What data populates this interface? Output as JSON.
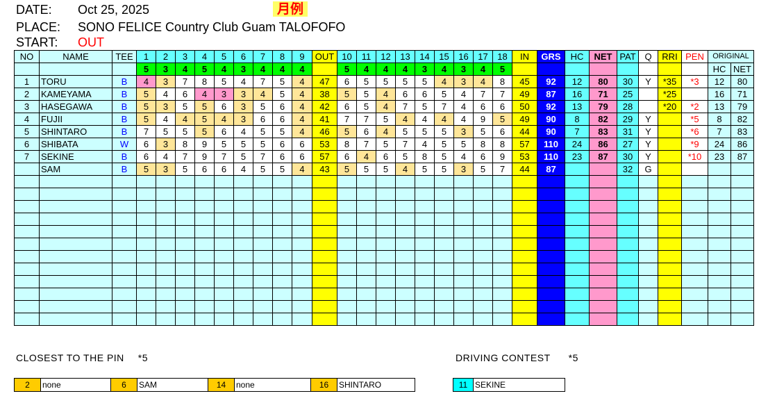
{
  "header": {
    "date_label": "DATE:",
    "date": "Oct 25, 2025",
    "place_label": "PLACE:",
    "place": "SONO FELICE Country Club Guam TALOFOFO",
    "start_label": "START:",
    "start": "OUT",
    "badge": "月例"
  },
  "columns": {
    "no": "NO",
    "name": "NAME",
    "tee": "TEE",
    "out": "OUT",
    "in": "IN",
    "grs": "GRS",
    "hc": "HC",
    "net": "NET",
    "pat": "PAT",
    "q": "Q",
    "rri": "RRI",
    "pen": "PEN",
    "original": "ORIGINAL",
    "orig_hc": "HC",
    "orig_net": "NET"
  },
  "holes": [
    "1",
    "2",
    "3",
    "4",
    "5",
    "6",
    "7",
    "8",
    "9",
    "10",
    "11",
    "12",
    "13",
    "14",
    "15",
    "16",
    "17",
    "18"
  ],
  "pars": [
    5,
    3,
    4,
    5,
    4,
    3,
    4,
    4,
    4,
    5,
    4,
    4,
    4,
    3,
    4,
    3,
    4,
    5
  ],
  "colors": {
    "par_highlight": "#ffe699",
    "birdie_highlight": "#ff99cc",
    "grs": "#0000ff",
    "out_in": "#ffff00"
  },
  "players": [
    {
      "no": "1",
      "name": "TORU",
      "tee": "B",
      "scores": [
        4,
        3,
        7,
        8,
        5,
        4,
        7,
        5,
        4,
        6,
        5,
        5,
        5,
        5,
        4,
        3,
        4,
        8
      ],
      "out": "47",
      "in": "45",
      "grs": "92",
      "hc": "12",
      "net": "80",
      "pat": "30",
      "q": "Y",
      "rri": "*35",
      "pen": "*3",
      "orig_hc": "12",
      "orig_net": "80"
    },
    {
      "no": "2",
      "name": "KAMEYAMA",
      "tee": "B",
      "scores": [
        5,
        4,
        6,
        4,
        3,
        3,
        4,
        5,
        4,
        5,
        5,
        4,
        6,
        6,
        5,
        4,
        7,
        7
      ],
      "out": "38",
      "in": "49",
      "grs": "87",
      "hc": "16",
      "net": "71",
      "pat": "25",
      "q": "",
      "rri": "*25",
      "pen": "",
      "orig_hc": "16",
      "orig_net": "71"
    },
    {
      "no": "3",
      "name": "HASEGAWA",
      "tee": "B",
      "scores": [
        5,
        3,
        5,
        5,
        6,
        3,
        5,
        6,
        4,
        6,
        5,
        4,
        7,
        5,
        7,
        4,
        6,
        6
      ],
      "out": "42",
      "in": "50",
      "grs": "92",
      "hc": "13",
      "net": "79",
      "pat": "28",
      "q": "",
      "rri": "*20",
      "pen": "*2",
      "orig_hc": "13",
      "orig_net": "79"
    },
    {
      "no": "4",
      "name": "FUJII",
      "tee": "B",
      "scores": [
        5,
        4,
        4,
        5,
        4,
        3,
        6,
        6,
        4,
        7,
        7,
        5,
        4,
        4,
        4,
        4,
        9,
        5
      ],
      "out": "41",
      "in": "49",
      "grs": "90",
      "hc": "8",
      "net": "82",
      "pat": "29",
      "q": "Y",
      "rri": "",
      "pen": "*5",
      "orig_hc": "8",
      "orig_net": "82"
    },
    {
      "no": "5",
      "name": "SHINTARO",
      "tee": "B",
      "scores": [
        7,
        5,
        5,
        5,
        6,
        4,
        5,
        5,
        4,
        5,
        6,
        4,
        5,
        5,
        5,
        3,
        5,
        6
      ],
      "out": "46",
      "in": "44",
      "grs": "90",
      "hc": "7",
      "net": "83",
      "pat": "31",
      "q": "Y",
      "rri": "",
      "pen": "*6",
      "orig_hc": "7",
      "orig_net": "83"
    },
    {
      "no": "6",
      "name": "SHIBATA",
      "tee": "W",
      "scores": [
        6,
        3,
        8,
        9,
        5,
        5,
        5,
        6,
        6,
        8,
        7,
        5,
        7,
        4,
        5,
        5,
        8,
        8
      ],
      "out": "53",
      "in": "57",
      "grs": "110",
      "hc": "24",
      "net": "86",
      "pat": "27",
      "q": "Y",
      "rri": "",
      "pen": "*9",
      "orig_hc": "24",
      "orig_net": "86"
    },
    {
      "no": "7",
      "name": "SEKINE",
      "tee": "B",
      "scores": [
        6,
        4,
        7,
        9,
        7,
        5,
        7,
        6,
        6,
        6,
        4,
        6,
        5,
        8,
        5,
        4,
        6,
        9
      ],
      "out": "57",
      "in": "53",
      "grs": "110",
      "hc": "23",
      "net": "87",
      "pat": "30",
      "q": "Y",
      "rri": "",
      "pen": "*10",
      "orig_hc": "23",
      "orig_net": "87"
    },
    {
      "no": "",
      "name": "SAM",
      "tee": "B",
      "scores": [
        5,
        3,
        5,
        6,
        6,
        4,
        5,
        5,
        4,
        5,
        5,
        5,
        4,
        5,
        5,
        3,
        5,
        7
      ],
      "out": "43",
      "in": "44",
      "grs": "87",
      "hc": "",
      "net": "",
      "pat": "32",
      "q": "G",
      "rri": "",
      "pen": "",
      "orig_hc": "",
      "orig_net": ""
    }
  ],
  "closest": {
    "title": "CLOSEST TO THE PIN",
    "mark": "*5",
    "items": [
      {
        "hole": "2",
        "name": "none"
      },
      {
        "hole": "6",
        "name": "SAM"
      },
      {
        "hole": "14",
        "name": "none"
      },
      {
        "hole": "16",
        "name": "SHINTARO"
      }
    ]
  },
  "driving": {
    "title": "DRIVING CONTEST",
    "mark": "*5",
    "items": [
      {
        "hole": "11",
        "name": "SEKINE"
      }
    ]
  }
}
